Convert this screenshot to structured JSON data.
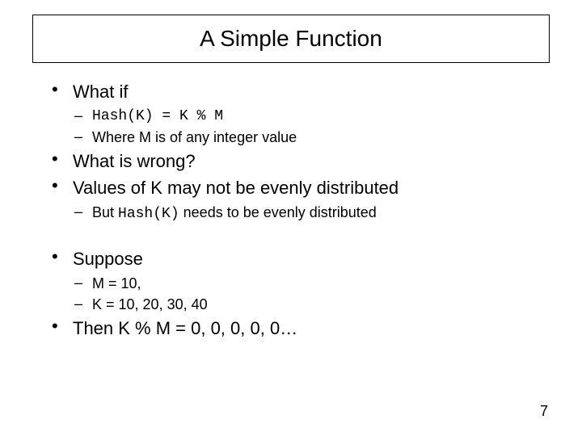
{
  "title": "A Simple Function",
  "page_number": "7",
  "colors": {
    "background": "#ffffff",
    "text": "#000000",
    "border": "#000000"
  },
  "fonts": {
    "body": "Arial",
    "code": "Courier New",
    "title_size_pt": 28,
    "lvl1_size_pt": 22,
    "lvl2_size_pt": 18
  },
  "bullets": [
    {
      "text": "What if",
      "children": [
        {
          "code": "Hash(K) = K % M"
        },
        {
          "text": "Where M is of any integer value"
        }
      ]
    },
    {
      "text": "What is wrong?",
      "children": []
    },
    {
      "text": "Values of K may not be evenly distributed",
      "children": [
        {
          "prefix": "But ",
          "code": "Hash(K)",
          "suffix": " needs to be evenly distributed"
        }
      ]
    },
    {
      "text": "Suppose",
      "gap_before": true,
      "children": [
        {
          "text": "M = 10,"
        },
        {
          "text": "K = 10, 20, 30, 40"
        }
      ]
    },
    {
      "text": "Then K % M = 0, 0, 0, 0, 0…",
      "children": []
    }
  ]
}
